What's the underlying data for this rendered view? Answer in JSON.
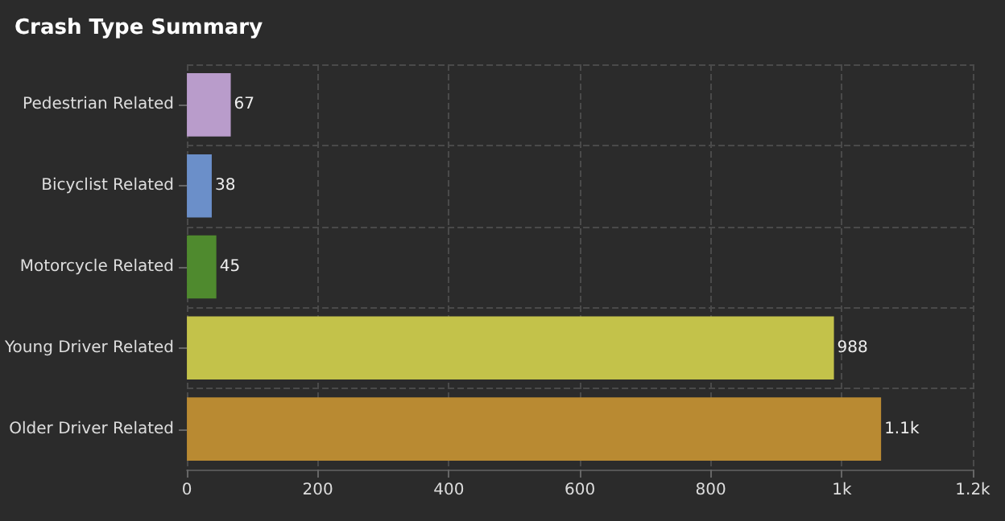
{
  "chart_data": {
    "type": "bar",
    "title": "Crash Type Summary",
    "orientation": "horizontal",
    "categories": [
      "Pedestrian Related",
      "Bicyclist Related",
      "Motorcycle Related",
      "Young Driver Related",
      "Older Driver Related"
    ],
    "values": [
      67,
      38,
      45,
      988,
      1060
    ],
    "colors": [
      "#b99ccb",
      "#6b8fc9",
      "#4f8a2e",
      "#c3c24a",
      "#b98a32"
    ],
    "value_labels": [
      "67",
      "38",
      "45",
      "988",
      "1.1k"
    ],
    "xlim": [
      0,
      1200
    ],
    "xticks": [
      0,
      200,
      400,
      600,
      800,
      {
        "value": 1000,
        "label": "1k"
      },
      {
        "value": 1200,
        "label": "1.2k"
      }
    ],
    "grid": true
  }
}
